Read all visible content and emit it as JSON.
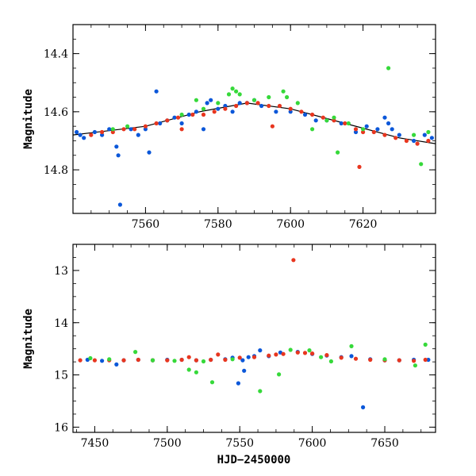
{
  "chart_data": [
    {
      "type": "scatter",
      "panel": "top",
      "xlim": [
        7540,
        7640
      ],
      "ylim": [
        14.95,
        14.3
      ],
      "y_inverted": true,
      "xticks": [
        7560,
        7580,
        7600,
        7620
      ],
      "yticks": [
        14.4,
        14.6,
        14.8
      ],
      "ylabel": "Magnitude",
      "xlabel": "",
      "grid": false,
      "fit_curve": {
        "x": [
          7540,
          7560,
          7575,
          7588,
          7600,
          7615,
          7630,
          7640
        ],
        "y": [
          14.68,
          14.65,
          14.6,
          14.57,
          14.59,
          14.64,
          14.69,
          14.71
        ]
      },
      "series": [
        {
          "color": "#0b57d9",
          "points": [
            [
              7541,
              14.67
            ],
            [
              7542,
              14.68
            ],
            [
              7543,
              14.69
            ],
            [
              7546,
              14.67
            ],
            [
              7548,
              14.68
            ],
            [
              7550,
              14.66
            ],
            [
              7552,
              14.72
            ],
            [
              7552.5,
              14.75
            ],
            [
              7553,
              14.92
            ],
            [
              7556,
              14.66
            ],
            [
              7558,
              14.68
            ],
            [
              7560,
              14.66
            ],
            [
              7561,
              14.74
            ],
            [
              7563,
              14.53
            ],
            [
              7564,
              14.64
            ],
            [
              7566,
              14.63
            ],
            [
              7568,
              14.62
            ],
            [
              7570,
              14.64
            ],
            [
              7572,
              14.61
            ],
            [
              7574,
              14.6
            ],
            [
              7576,
              14.66
            ],
            [
              7577,
              14.57
            ],
            [
              7578,
              14.56
            ],
            [
              7580,
              14.59
            ],
            [
              7582,
              14.58
            ],
            [
              7584,
              14.6
            ],
            [
              7586,
              14.57
            ],
            [
              7588,
              14.57
            ],
            [
              7590,
              14.56
            ],
            [
              7592,
              14.58
            ],
            [
              7596,
              14.6
            ],
            [
              7600,
              14.6
            ],
            [
              7604,
              14.61
            ],
            [
              7607,
              14.63
            ],
            [
              7610,
              14.63
            ],
            [
              7614,
              14.64
            ],
            [
              7618,
              14.67
            ],
            [
              7621,
              14.65
            ],
            [
              7624,
              14.66
            ],
            [
              7626,
              14.62
            ],
            [
              7627,
              14.64
            ],
            [
              7628,
              14.66
            ],
            [
              7630,
              14.68
            ],
            [
              7634,
              14.7
            ],
            [
              7637,
              14.68
            ],
            [
              7639,
              14.69
            ]
          ]
        },
        {
          "color": "#e8361f",
          "points": [
            [
              7545,
              14.68
            ],
            [
              7548,
              14.67
            ],
            [
              7551,
              14.67
            ],
            [
              7554,
              14.66
            ],
            [
              7557,
              14.66
            ],
            [
              7560,
              14.65
            ],
            [
              7563,
              14.64
            ],
            [
              7566,
              14.63
            ],
            [
              7569,
              14.62
            ],
            [
              7570,
              14.66
            ],
            [
              7573,
              14.61
            ],
            [
              7576,
              14.61
            ],
            [
              7579,
              14.6
            ],
            [
              7582,
              14.59
            ],
            [
              7585,
              14.58
            ],
            [
              7588,
              14.57
            ],
            [
              7591,
              14.57
            ],
            [
              7594,
              14.58
            ],
            [
              7595,
              14.65
            ],
            [
              7597,
              14.58
            ],
            [
              7600,
              14.59
            ],
            [
              7603,
              14.6
            ],
            [
              7606,
              14.61
            ],
            [
              7609,
              14.62
            ],
            [
              7612,
              14.63
            ],
            [
              7615,
              14.64
            ],
            [
              7618,
              14.66
            ],
            [
              7619,
              14.79
            ],
            [
              7620,
              14.67
            ],
            [
              7623,
              14.67
            ],
            [
              7626,
              14.68
            ],
            [
              7629,
              14.69
            ],
            [
              7632,
              14.7
            ],
            [
              7635,
              14.71
            ],
            [
              7638,
              14.7
            ]
          ]
        },
        {
          "color": "#36d93a",
          "points": [
            [
              7551,
              14.66
            ],
            [
              7555,
              14.65
            ],
            [
              7570,
              14.61
            ],
            [
              7574,
              14.56
            ],
            [
              7576,
              14.59
            ],
            [
              7580,
              14.57
            ],
            [
              7583,
              14.54
            ],
            [
              7584,
              14.52
            ],
            [
              7585,
              14.53
            ],
            [
              7586,
              14.54
            ],
            [
              7590,
              14.56
            ],
            [
              7594,
              14.55
            ],
            [
              7598,
              14.53
            ],
            [
              7599,
              14.55
            ],
            [
              7602,
              14.57
            ],
            [
              7606,
              14.66
            ],
            [
              7610,
              14.63
            ],
            [
              7612,
              14.62
            ],
            [
              7613,
              14.74
            ],
            [
              7616,
              14.64
            ],
            [
              7620,
              14.66
            ],
            [
              7627,
              14.45
            ],
            [
              7634,
              14.68
            ],
            [
              7636,
              14.78
            ],
            [
              7638,
              14.67
            ]
          ]
        }
      ]
    },
    {
      "type": "scatter",
      "panel": "bottom",
      "xlim": [
        7435,
        7685
      ],
      "ylim": [
        16.1,
        12.5
      ],
      "y_inverted": true,
      "xticks": [
        7450,
        7500,
        7550,
        7600,
        7650
      ],
      "yticks": [
        13,
        14,
        15,
        16
      ],
      "ylabel": "Magnitude",
      "xlabel": "HJD−2450000",
      "grid": false,
      "series": [
        {
          "color": "#0b57d9",
          "points": [
            [
              7445,
              14.71
            ],
            [
              7455,
              14.73
            ],
            [
              7465,
              14.8
            ],
            [
              7470,
              14.72
            ],
            [
              7480,
              14.71
            ],
            [
              7490,
              14.72
            ],
            [
              7500,
              14.71
            ],
            [
              7510,
              14.71
            ],
            [
              7520,
              14.72
            ],
            [
              7530,
              14.71
            ],
            [
              7540,
              14.7
            ],
            [
              7545,
              14.67
            ],
            [
              7549,
              15.16
            ],
            [
              7552,
              14.72
            ],
            [
              7553,
              14.92
            ],
            [
              7556,
              14.66
            ],
            [
              7560,
              14.64
            ],
            [
              7564,
              14.53
            ],
            [
              7570,
              14.64
            ],
            [
              7578,
              14.57
            ],
            [
              7590,
              14.56
            ],
            [
              7600,
              14.6
            ],
            [
              7610,
              14.63
            ],
            [
              7620,
              14.66
            ],
            [
              7627,
              14.64
            ],
            [
              7635,
              15.62
            ],
            [
              7640,
              14.7
            ],
            [
              7650,
              14.72
            ],
            [
              7660,
              14.72
            ],
            [
              7670,
              14.71
            ],
            [
              7680,
              14.71
            ]
          ]
        },
        {
          "color": "#e8361f",
          "points": [
            [
              7440,
              14.72
            ],
            [
              7450,
              14.72
            ],
            [
              7460,
              14.72
            ],
            [
              7470,
              14.72
            ],
            [
              7480,
              14.71
            ],
            [
              7490,
              14.72
            ],
            [
              7500,
              14.72
            ],
            [
              7510,
              14.71
            ],
            [
              7515,
              14.66
            ],
            [
              7520,
              14.72
            ],
            [
              7530,
              14.71
            ],
            [
              7535,
              14.61
            ],
            [
              7540,
              14.71
            ],
            [
              7550,
              14.67
            ],
            [
              7560,
              14.66
            ],
            [
              7570,
              14.63
            ],
            [
              7575,
              14.61
            ],
            [
              7580,
              14.6
            ],
            [
              7587,
              12.8
            ],
            [
              7590,
              14.57
            ],
            [
              7595,
              14.58
            ],
            [
              7600,
              14.59
            ],
            [
              7610,
              14.62
            ],
            [
              7620,
              14.67
            ],
            [
              7630,
              14.69
            ],
            [
              7640,
              14.71
            ],
            [
              7650,
              14.72
            ],
            [
              7660,
              14.72
            ],
            [
              7670,
              14.73
            ],
            [
              7678,
              14.71
            ]
          ]
        },
        {
          "color": "#36d93a",
          "points": [
            [
              7447,
              14.68
            ],
            [
              7460,
              14.7
            ],
            [
              7478,
              14.56
            ],
            [
              7490,
              14.72
            ],
            [
              7505,
              14.73
            ],
            [
              7515,
              14.9
            ],
            [
              7520,
              14.95
            ],
            [
              7525,
              14.74
            ],
            [
              7531,
              15.14
            ],
            [
              7545,
              14.7
            ],
            [
              7564,
              15.31
            ],
            [
              7577,
              14.99
            ],
            [
              7585,
              14.52
            ],
            [
              7598,
              14.53
            ],
            [
              7606,
              14.66
            ],
            [
              7613,
              14.74
            ],
            [
              7627,
              14.45
            ],
            [
              7650,
              14.7
            ],
            [
              7671,
              14.82
            ],
            [
              7678,
              14.42
            ]
          ]
        }
      ]
    }
  ]
}
